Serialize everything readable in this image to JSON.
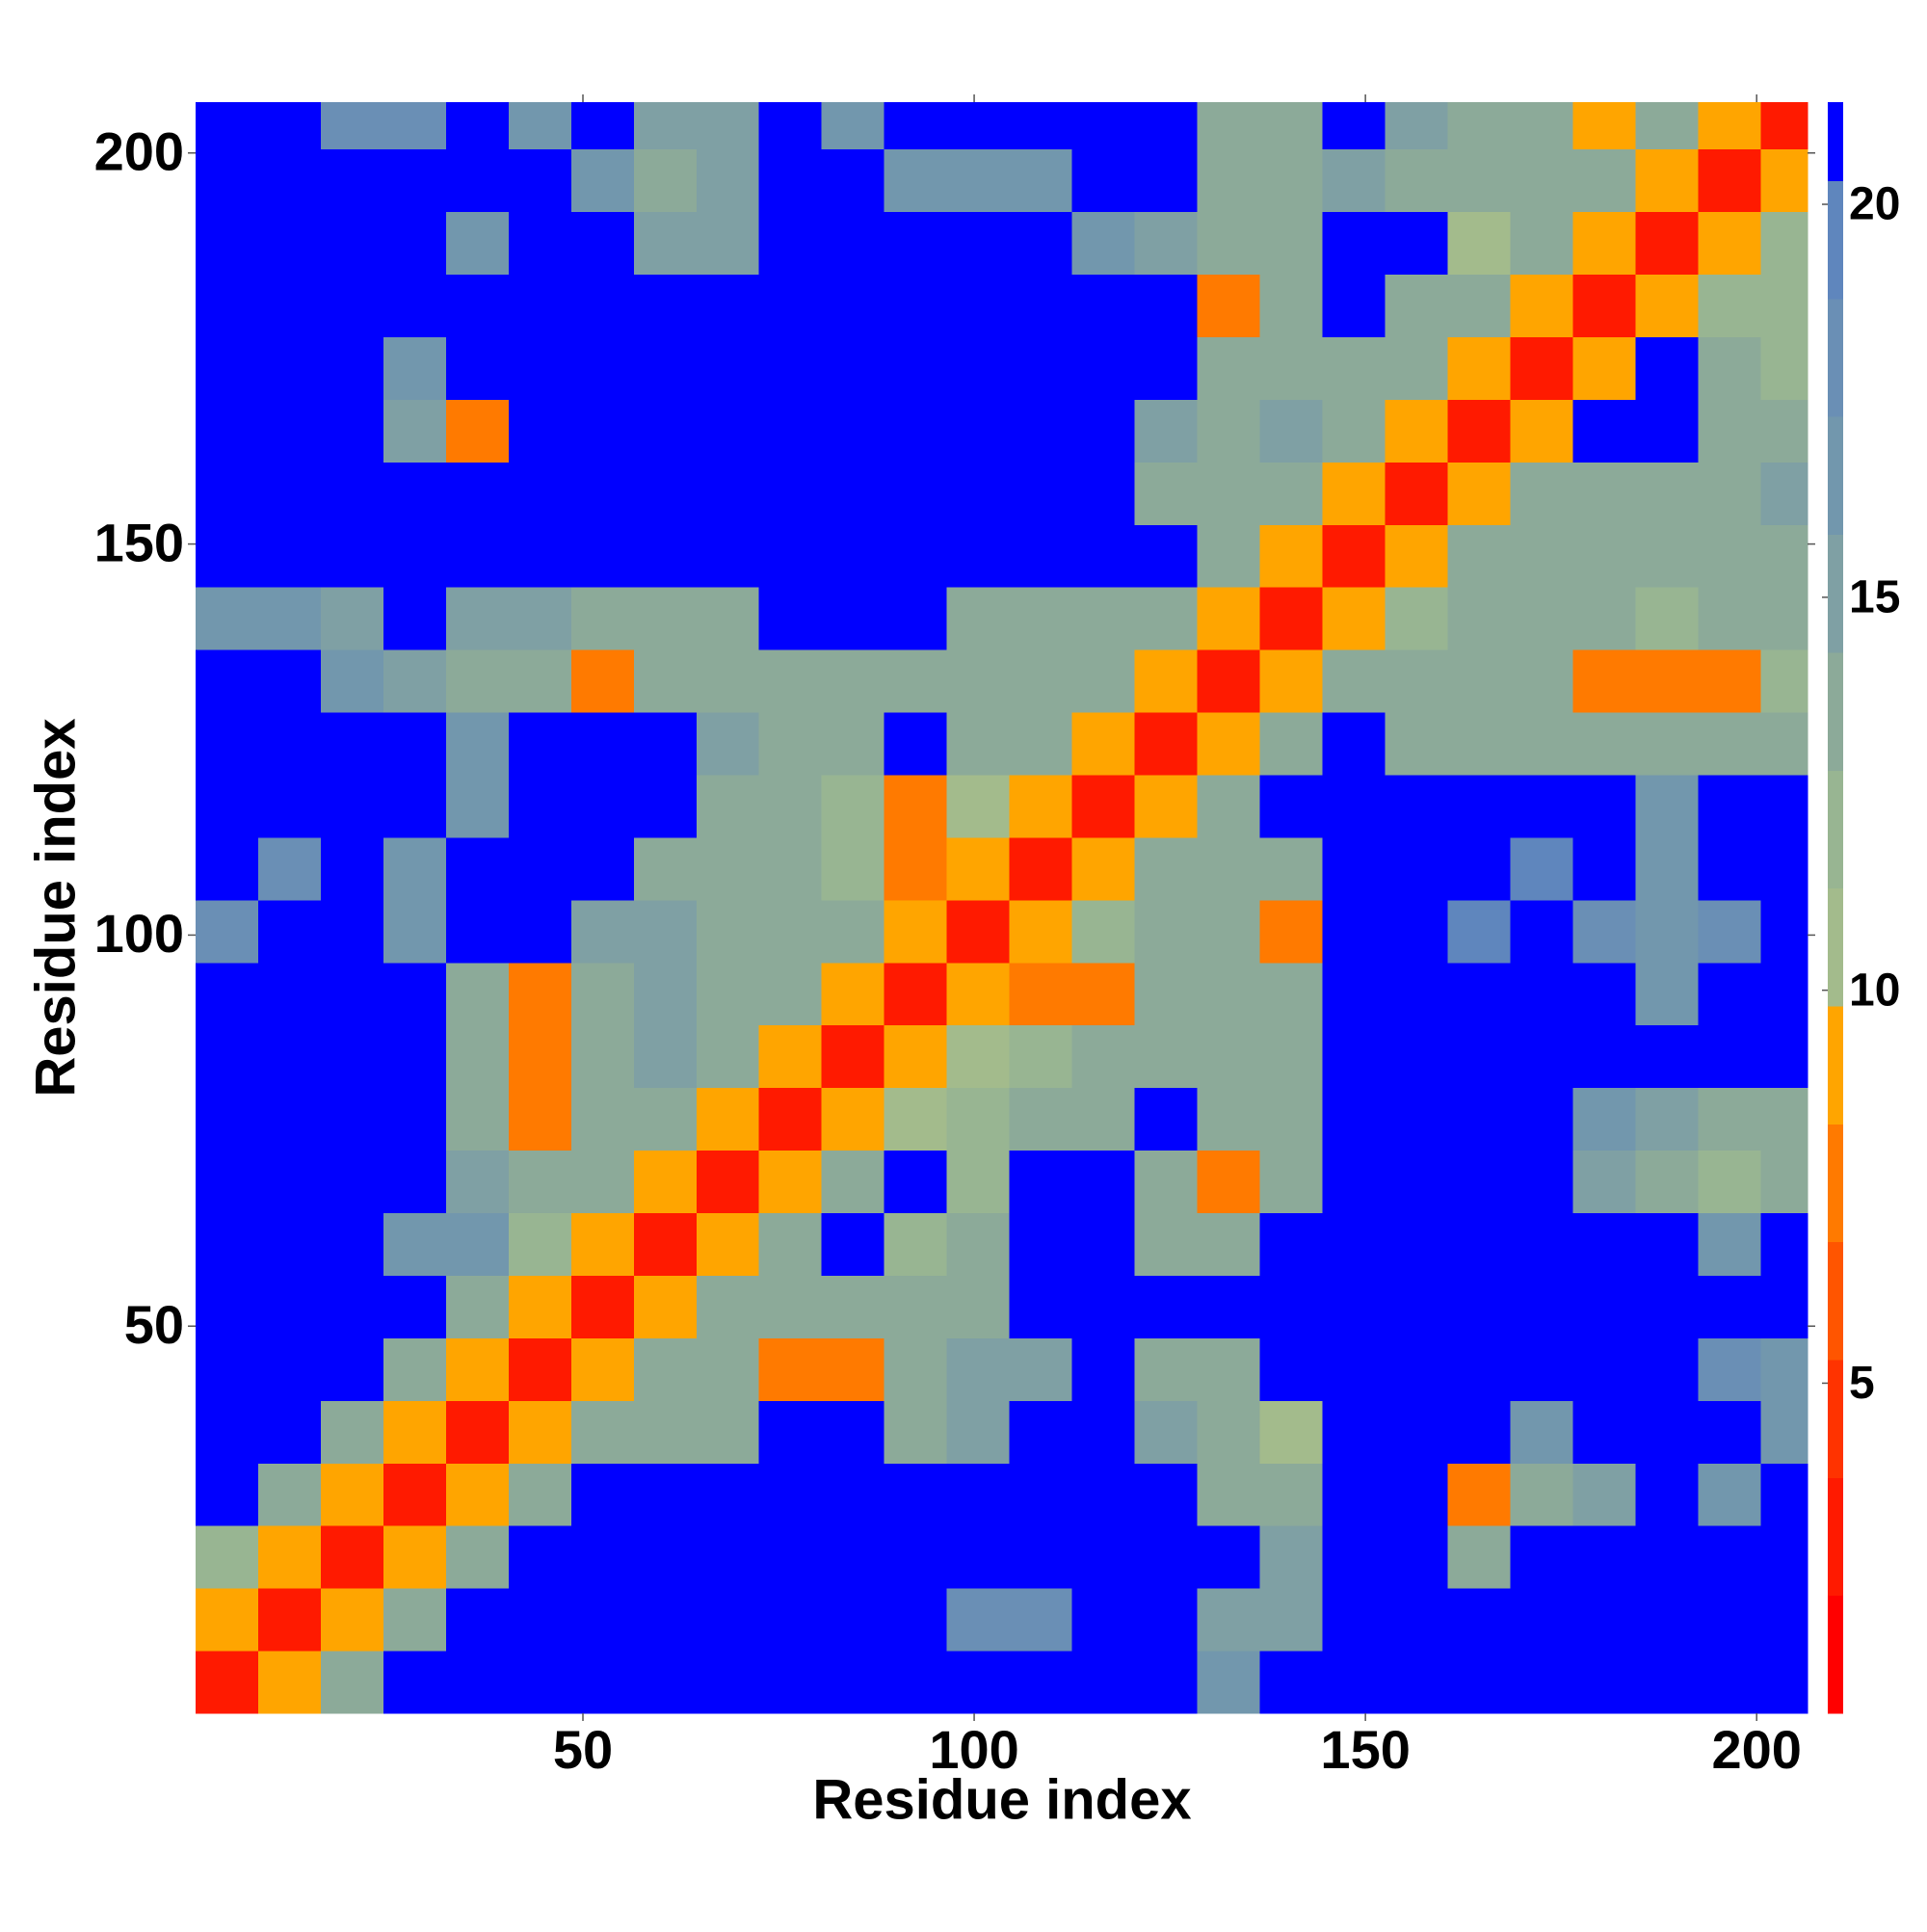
{
  "chart_data": {
    "type": "heatmap",
    "xlabel": "Residue index",
    "ylabel": "Residue index",
    "xlim": [
      0.5,
      206.5
    ],
    "ylim": [
      0.5,
      206.5
    ],
    "xticks": [
      50,
      100,
      150,
      200
    ],
    "yticks": [
      50,
      100,
      150,
      200
    ],
    "x_edges": [
      0.5,
      8.5,
      16.5,
      24.5,
      32.5,
      40.5,
      48.5,
      56.5,
      64.5,
      72.5,
      80.5,
      88.5,
      96.5,
      104.5,
      112.5,
      120.5,
      128.5,
      136.5,
      144.5,
      152.5,
      160.5,
      168.5,
      176.5,
      184.5,
      192.5,
      200.5,
      206.5
    ],
    "y_edges": [
      0.5,
      8.5,
      16.5,
      24.5,
      32.5,
      40.5,
      48.5,
      56.5,
      64.5,
      72.5,
      80.5,
      88.5,
      96.5,
      104.5,
      112.5,
      120.5,
      128.5,
      136.5,
      144.5,
      152.5,
      160.5,
      168.5,
      176.5,
      184.5,
      192.5,
      200.5,
      206.5
    ],
    "z": [
      [
        3,
        9,
        14,
        21,
        21,
        21,
        21,
        21,
        21,
        21,
        21,
        21,
        21,
        21,
        21,
        21,
        16,
        21,
        21,
        21,
        21,
        21,
        21,
        21,
        21,
        21
      ],
      [
        9,
        3,
        9,
        14,
        21,
        21,
        21,
        21,
        21,
        21,
        21,
        21,
        18,
        18,
        21,
        21,
        15,
        15,
        21,
        21,
        21,
        21,
        21,
        21,
        21,
        21
      ],
      [
        12,
        9,
        3,
        9,
        14,
        21,
        21,
        21,
        21,
        21,
        21,
        21,
        21,
        21,
        21,
        21,
        21,
        15,
        21,
        21,
        14,
        21,
        21,
        21,
        21,
        21
      ],
      [
        21,
        13,
        9,
        3,
        9,
        14,
        21,
        21,
        21,
        21,
        21,
        21,
        21,
        21,
        21,
        21,
        14,
        14,
        21,
        21,
        8,
        14,
        15,
        21,
        17,
        21
      ],
      [
        21,
        21,
        14,
        9,
        3,
        9,
        13,
        14,
        14,
        21,
        21,
        14,
        15,
        21,
        21,
        15,
        14,
        10,
        21,
        21,
        21,
        17,
        21,
        21,
        21,
        17
      ],
      [
        21,
        21,
        21,
        14,
        9,
        3,
        9,
        14,
        13,
        7,
        7,
        13,
        15,
        15,
        21,
        14,
        14,
        21,
        21,
        21,
        21,
        21,
        21,
        21,
        18,
        16
      ],
      [
        21,
        21,
        21,
        21,
        14,
        9,
        3,
        9,
        14,
        13,
        13,
        14,
        14,
        21,
        21,
        21,
        21,
        21,
        21,
        21,
        21,
        21,
        21,
        21,
        21,
        21
      ],
      [
        21,
        21,
        21,
        17,
        16,
        12,
        9,
        3,
        9,
        14,
        21,
        12,
        13,
        21,
        21,
        14,
        14,
        21,
        21,
        21,
        21,
        21,
        21,
        21,
        17,
        21
      ],
      [
        21,
        21,
        21,
        21,
        15,
        13,
        14,
        9,
        3,
        9,
        14,
        21,
        12,
        21,
        21,
        13,
        8,
        14,
        21,
        21,
        21,
        21,
        15,
        14,
        12,
        13
      ],
      [
        21,
        21,
        21,
        21,
        14,
        7,
        14,
        14,
        9,
        3,
        9,
        11,
        12,
        13,
        14,
        21,
        13,
        13,
        21,
        21,
        21,
        21,
        16,
        15,
        14,
        14
      ],
      [
        21,
        21,
        21,
        21,
        14,
        7,
        14,
        15,
        14,
        9,
        3,
        9,
        11,
        12,
        13,
        13,
        14,
        14,
        21,
        21,
        21,
        21,
        21,
        21,
        21,
        21
      ],
      [
        21,
        21,
        21,
        21,
        14,
        7,
        14,
        15,
        14,
        14,
        9,
        3,
        9,
        7,
        8,
        13,
        13,
        14,
        21,
        21,
        21,
        21,
        21,
        17,
        21,
        21
      ],
      [
        18,
        21,
        21,
        17,
        21,
        21,
        15,
        15,
        14,
        13,
        14,
        9,
        3,
        9,
        12,
        13,
        13,
        8,
        21,
        21,
        19,
        21,
        18,
        17,
        18,
        21
      ],
      [
        21,
        18,
        21,
        17,
        21,
        21,
        21,
        14,
        13,
        13,
        12,
        7,
        9,
        3,
        9,
        13,
        14,
        14,
        21,
        21,
        21,
        19,
        21,
        16,
        21,
        21
      ],
      [
        21,
        21,
        21,
        21,
        17,
        21,
        21,
        21,
        14,
        13,
        12,
        7,
        11,
        9,
        3,
        9,
        14,
        21,
        21,
        21,
        21,
        21,
        21,
        17,
        21,
        21
      ],
      [
        21,
        21,
        21,
        21,
        16,
        21,
        21,
        21,
        15,
        14,
        14,
        21,
        13,
        14,
        9,
        3,
        9,
        14,
        21,
        13,
        14,
        13,
        14,
        13,
        14,
        13
      ],
      [
        21,
        21,
        16,
        15,
        14,
        14,
        8,
        13,
        14,
        13,
        14,
        14,
        13,
        14,
        14,
        9,
        3,
        9,
        14,
        13,
        14,
        13,
        8,
        8,
        8,
        12
      ],
      [
        17,
        17,
        15,
        21,
        15,
        15,
        14,
        14,
        14,
        21,
        21,
        21,
        14,
        14,
        13,
        14,
        9,
        3,
        9,
        12,
        14,
        13,
        13,
        12,
        13,
        13
      ],
      [
        21,
        21,
        21,
        21,
        21,
        21,
        21,
        21,
        21,
        21,
        21,
        21,
        21,
        21,
        21,
        21,
        14,
        9,
        3,
        9,
        13,
        14,
        14,
        13,
        13,
        14
      ],
      [
        21,
        21,
        21,
        21,
        21,
        21,
        21,
        21,
        21,
        21,
        21,
        21,
        21,
        21,
        21,
        13,
        14,
        14,
        9,
        3,
        9,
        13,
        14,
        14,
        14,
        15
      ],
      [
        21,
        21,
        21,
        15,
        8,
        21,
        21,
        21,
        21,
        21,
        21,
        21,
        21,
        21,
        21,
        15,
        14,
        15,
        14,
        9,
        3,
        9,
        21,
        21,
        14,
        13
      ],
      [
        21,
        21,
        21,
        16,
        21,
        21,
        21,
        21,
        21,
        21,
        21,
        21,
        21,
        21,
        21,
        21,
        14,
        13,
        13,
        14,
        9,
        3,
        9,
        21,
        13,
        12
      ],
      [
        21,
        21,
        21,
        21,
        21,
        21,
        21,
        21,
        21,
        21,
        21,
        21,
        21,
        21,
        21,
        21,
        8,
        13,
        21,
        13,
        14,
        9,
        3,
        9,
        12,
        12
      ],
      [
        21,
        21,
        21,
        21,
        17,
        21,
        21,
        15,
        15,
        21,
        21,
        21,
        21,
        21,
        16,
        15,
        13,
        14,
        21,
        21,
        11,
        14,
        9,
        3,
        9,
        12
      ],
      [
        21,
        21,
        21,
        21,
        21,
        21,
        16,
        14,
        15,
        21,
        21,
        17,
        17,
        17,
        21,
        21,
        13,
        14,
        15,
        14,
        13,
        13,
        14,
        9,
        3,
        9
      ],
      [
        21,
        21,
        18,
        18,
        21,
        17,
        21,
        15,
        15,
        21,
        17,
        21,
        21,
        21,
        21,
        21,
        14,
        14,
        21,
        15,
        14,
        13,
        9,
        14,
        9,
        3
      ]
    ],
    "colorbar": {
      "bounds": [
        0.8,
        2.3,
        3.8,
        5.3,
        6.8,
        8.3,
        9.8,
        11.3,
        12.8,
        14.3,
        15.8,
        17.3,
        18.8,
        20.3,
        21.3
      ],
      "colors": [
        "#ff0000",
        "#ff1a00",
        "#ff3300",
        "#ff5500",
        "#ff7a00",
        "#ffa500",
        "#a3bb8c",
        "#98b592",
        "#8caa99",
        "#7fa0a4",
        "#7297ad",
        "#6a8fb5",
        "#5f86bd",
        "#0000ff"
      ],
      "ticks": [
        5,
        10,
        15,
        20
      ]
    }
  }
}
